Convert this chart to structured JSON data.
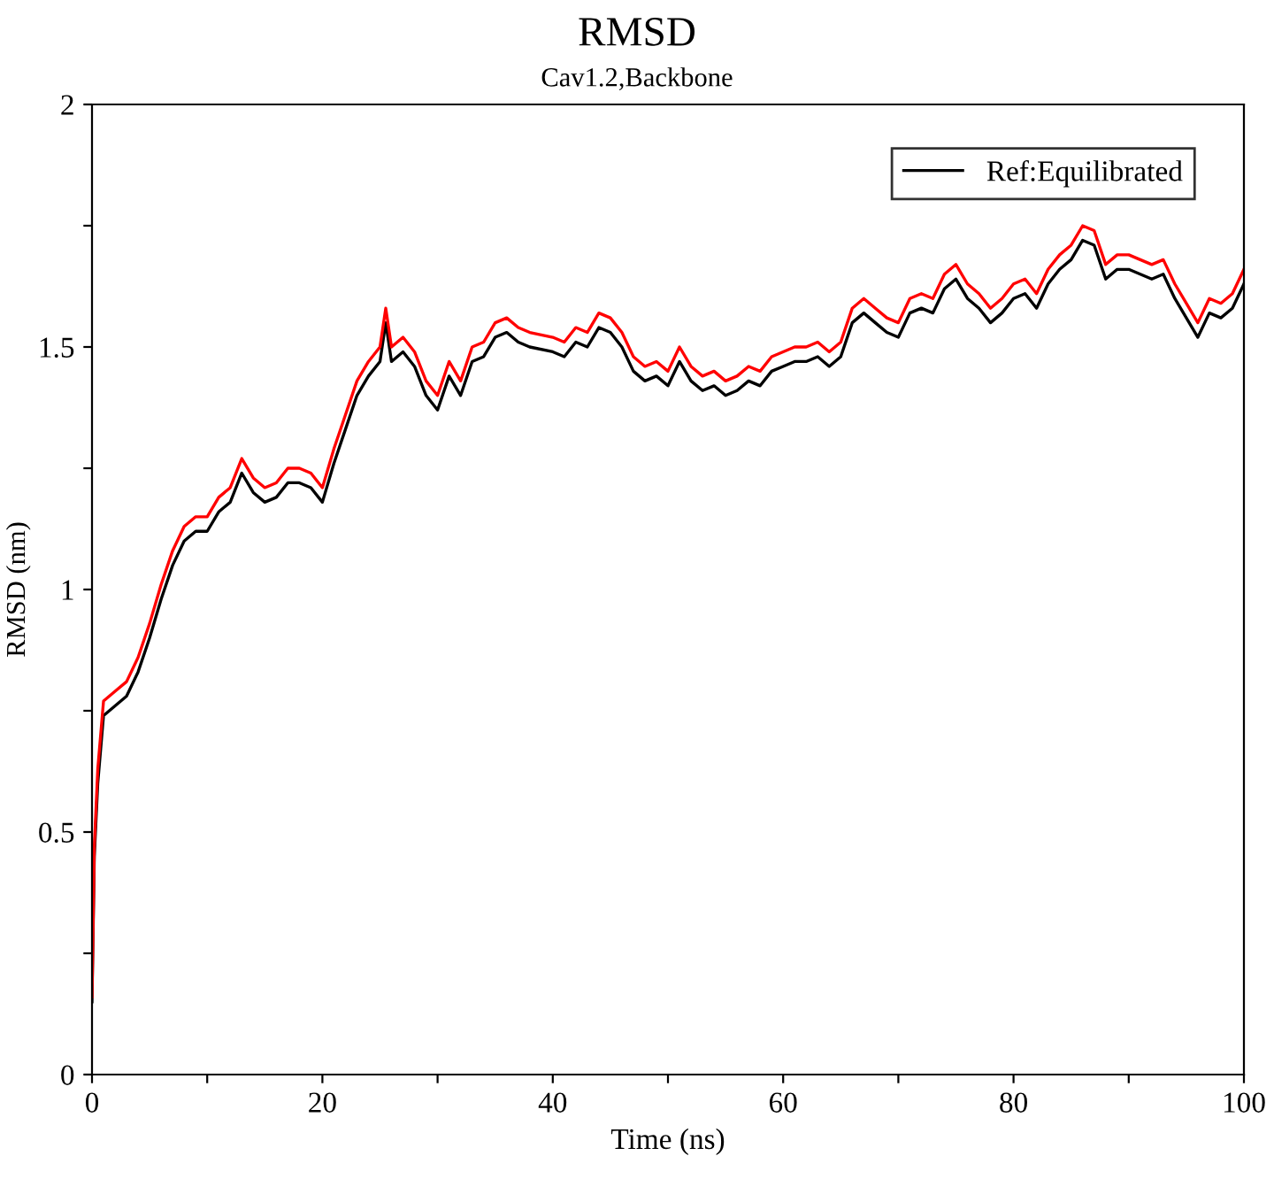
{
  "chart_data": {
    "type": "line",
    "title": "RMSD",
    "subtitle": "Cav1.2,Backbone",
    "xlabel": "Time (ns)",
    "ylabel": "RMSD (nm)",
    "x": [
      0,
      0.2,
      0.5,
      1,
      2,
      3,
      4,
      5,
      6,
      7,
      8,
      9,
      10,
      11,
      12,
      13,
      14,
      15,
      16,
      17,
      18,
      19,
      20,
      21,
      22,
      23,
      24,
      25,
      25.5,
      26,
      27,
      28,
      29,
      30,
      31,
      32,
      33,
      34,
      35,
      36,
      37,
      38,
      40,
      41,
      42,
      43,
      44,
      45,
      46,
      47,
      48,
      49,
      50,
      51,
      52,
      53,
      54,
      55,
      56,
      57,
      58,
      59,
      60,
      61,
      62,
      63,
      64,
      65,
      66,
      67,
      68,
      69,
      70,
      71,
      72,
      73,
      74,
      75,
      76,
      77,
      78,
      79,
      80,
      81,
      82,
      83,
      84,
      85,
      86,
      87,
      88,
      89,
      90,
      91,
      92,
      93,
      94,
      95,
      96,
      97,
      98,
      99,
      100
    ],
    "series": [
      {
        "name": "Ref:Equilibrated",
        "color": "#000000",
        "values": [
          0.15,
          0.45,
          0.6,
          0.74,
          0.76,
          0.78,
          0.83,
          0.9,
          0.98,
          1.05,
          1.1,
          1.12,
          1.12,
          1.16,
          1.18,
          1.24,
          1.2,
          1.18,
          1.19,
          1.22,
          1.22,
          1.21,
          1.18,
          1.26,
          1.33,
          1.4,
          1.44,
          1.47,
          1.55,
          1.47,
          1.49,
          1.46,
          1.4,
          1.37,
          1.44,
          1.4,
          1.47,
          1.48,
          1.52,
          1.53,
          1.51,
          1.5,
          1.49,
          1.48,
          1.51,
          1.5,
          1.54,
          1.53,
          1.5,
          1.45,
          1.43,
          1.44,
          1.42,
          1.47,
          1.43,
          1.41,
          1.42,
          1.4,
          1.41,
          1.43,
          1.42,
          1.45,
          1.46,
          1.47,
          1.47,
          1.48,
          1.46,
          1.48,
          1.55,
          1.57,
          1.55,
          1.53,
          1.52,
          1.57,
          1.58,
          1.57,
          1.62,
          1.64,
          1.6,
          1.58,
          1.55,
          1.57,
          1.6,
          1.61,
          1.58,
          1.63,
          1.66,
          1.68,
          1.72,
          1.71,
          1.64,
          1.66,
          1.66,
          1.65,
          1.64,
          1.65,
          1.6,
          1.56,
          1.52,
          1.57,
          1.56,
          1.58,
          1.63
        ]
      },
      {
        "color": "#ff0000",
        "values": [
          0.16,
          0.47,
          0.63,
          0.77,
          0.79,
          0.81,
          0.86,
          0.93,
          1.01,
          1.08,
          1.13,
          1.15,
          1.15,
          1.19,
          1.21,
          1.27,
          1.23,
          1.21,
          1.22,
          1.25,
          1.25,
          1.24,
          1.21,
          1.29,
          1.36,
          1.43,
          1.47,
          1.5,
          1.58,
          1.5,
          1.52,
          1.49,
          1.43,
          1.4,
          1.47,
          1.43,
          1.5,
          1.51,
          1.55,
          1.56,
          1.54,
          1.53,
          1.52,
          1.51,
          1.54,
          1.53,
          1.57,
          1.56,
          1.53,
          1.48,
          1.46,
          1.47,
          1.45,
          1.5,
          1.46,
          1.44,
          1.45,
          1.43,
          1.44,
          1.46,
          1.45,
          1.48,
          1.49,
          1.5,
          1.5,
          1.51,
          1.49,
          1.51,
          1.58,
          1.6,
          1.58,
          1.56,
          1.55,
          1.6,
          1.61,
          1.6,
          1.65,
          1.67,
          1.63,
          1.61,
          1.58,
          1.6,
          1.63,
          1.64,
          1.61,
          1.66,
          1.69,
          1.71,
          1.75,
          1.74,
          1.67,
          1.69,
          1.69,
          1.68,
          1.67,
          1.68,
          1.63,
          1.59,
          1.55,
          1.6,
          1.59,
          1.61,
          1.66
        ]
      }
    ],
    "xlim": [
      0,
      100
    ],
    "ylim": [
      0,
      2
    ],
    "xticks": [
      0,
      {
        "value": 10,
        "label": null
      },
      20,
      {
        "value": 30,
        "label": null
      },
      40,
      {
        "value": 50,
        "label": null
      },
      60,
      {
        "value": 70,
        "label": null
      },
      80,
      {
        "value": 90,
        "label": null
      },
      100
    ],
    "yticks": [
      0,
      {
        "value": 0.25,
        "label": null
      },
      0.5,
      {
        "value": 0.75,
        "label": null
      },
      1,
      {
        "value": 1.25,
        "label": null
      },
      1.5,
      {
        "value": 1.75,
        "label": null
      },
      2
    ],
    "grid": false,
    "legend": "top right",
    "marker": "none",
    "line_style": "solid"
  }
}
